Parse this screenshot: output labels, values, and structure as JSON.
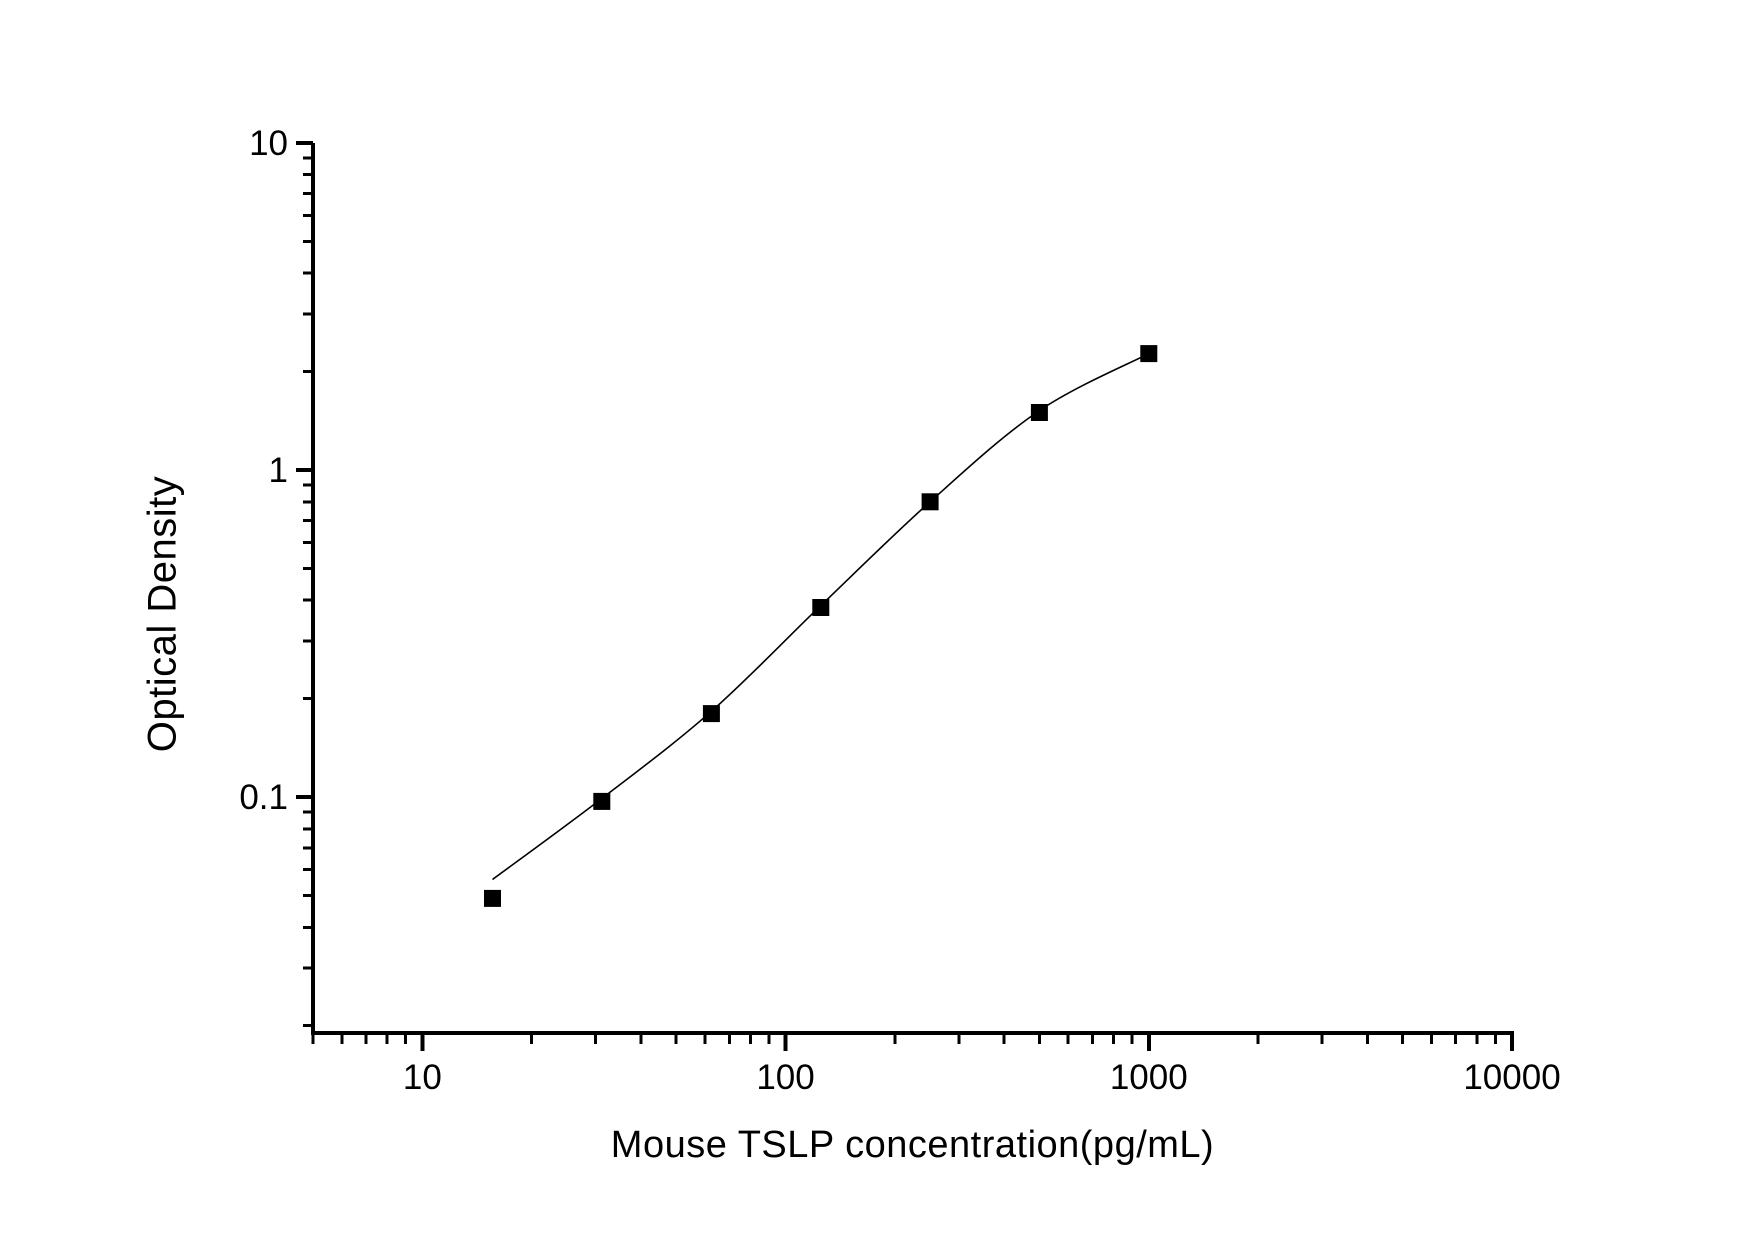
{
  "chart_data": {
    "type": "scatter",
    "title": "",
    "xlabel": "Mouse TSLP concentration(pg/mL)",
    "ylabel": "Optical Density",
    "x_scale": "log",
    "y_scale": "log",
    "xlim": [
      5,
      10000
    ],
    "ylim": [
      0.019,
      10
    ],
    "grid": false,
    "legend": null,
    "x": [
      15.6,
      31.2,
      62.5,
      125,
      250,
      500,
      1000
    ],
    "y": [
      0.049,
      0.097,
      0.18,
      0.38,
      0.8,
      1.5,
      2.27
    ],
    "fit_curve": [
      {
        "x": 15.6,
        "y": 0.056
      },
      {
        "x": 31.2,
        "y": 0.099
      },
      {
        "x": 62.5,
        "y": 0.183
      },
      {
        "x": 125,
        "y": 0.385
      },
      {
        "x": 250,
        "y": 0.8
      },
      {
        "x": 500,
        "y": 1.52
      },
      {
        "x": 1000,
        "y": 2.27
      }
    ],
    "x_major_ticks": [
      10,
      100,
      1000,
      10000
    ],
    "x_major_labels": [
      "10",
      "100",
      "1000",
      "10000"
    ],
    "x_minor_ticks": [
      5,
      6,
      7,
      8,
      9,
      20,
      30,
      40,
      50,
      60,
      70,
      80,
      90,
      200,
      300,
      400,
      500,
      600,
      700,
      800,
      900,
      2000,
      3000,
      4000,
      5000,
      6000,
      7000,
      8000,
      9000
    ],
    "y_major_ticks": [
      10,
      1,
      0.1
    ],
    "y_major_labels": [
      "10",
      "1",
      "0.1"
    ],
    "y_minor_ticks": [
      9,
      8,
      7,
      6,
      5,
      4,
      3,
      2,
      0.9,
      0.8,
      0.7,
      0.6,
      0.5,
      0.4,
      0.3,
      0.2,
      0.09,
      0.08,
      0.07,
      0.06,
      0.05,
      0.04,
      0.03,
      0.02
    ],
    "colors": {
      "background": "#ffffff",
      "axis": "#000000",
      "marker": "#000000",
      "curve": "#000000",
      "text": "#000000"
    },
    "marker_shape": "filled-square",
    "marker_size_px": 17
  }
}
